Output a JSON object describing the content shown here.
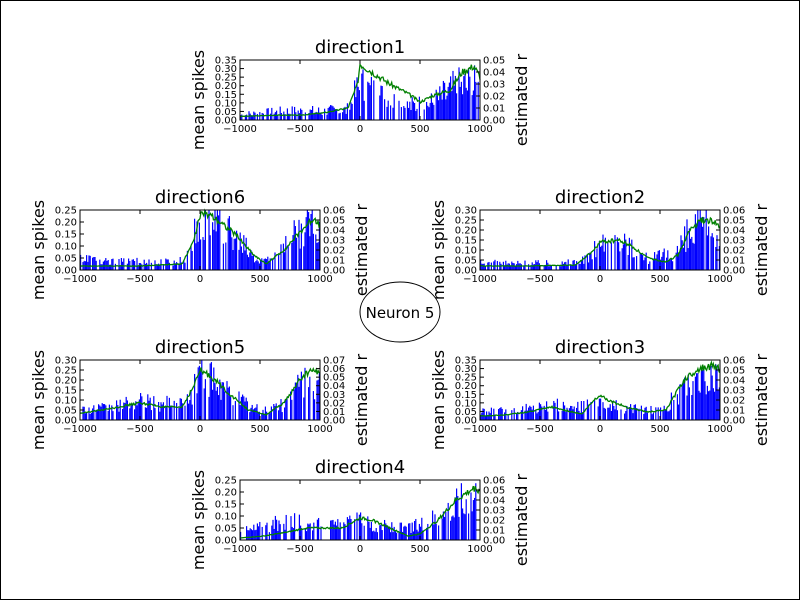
{
  "figure": {
    "center_label": "Neuron 5",
    "bar_color": "#0000ff",
    "line_color": "#008000"
  },
  "chart_data": [
    {
      "type": "bar",
      "title": "direction1",
      "xlabel": "",
      "ylabel": "mean spikes",
      "ylabel_right": "estimated r",
      "xlim": [
        -1000,
        1000
      ],
      "ylim": [
        0,
        0.35
      ],
      "ylim_right": [
        0,
        0.05
      ],
      "xticks": [
        -1000,
        -500,
        0,
        500,
        1000
      ],
      "yticks": [
        "0.00",
        "0.05",
        "0.10",
        "0.15",
        "0.20",
        "0.25",
        "0.30",
        "0.35"
      ],
      "yticks_right": [
        "0.00",
        "0.01",
        "0.02",
        "0.03",
        "0.04",
        "0.05"
      ],
      "profile": {
        "bars": [
          [
            -1000,
            0.03
          ],
          [
            -800,
            0.04
          ],
          [
            -600,
            0.05
          ],
          [
            -300,
            0.05
          ],
          [
            -100,
            0.06
          ],
          [
            0,
            0.2
          ],
          [
            200,
            0.13
          ],
          [
            400,
            0.08
          ],
          [
            600,
            0.1
          ],
          [
            800,
            0.18
          ],
          [
            900,
            0.2
          ],
          [
            1000,
            0.18
          ]
        ],
        "line": [
          [
            -1000,
            0.003
          ],
          [
            -700,
            0.004
          ],
          [
            -500,
            0.004
          ],
          [
            -300,
            0.006
          ],
          [
            -100,
            0.01
          ],
          [
            -20,
            0.03
          ],
          [
            0,
            0.047
          ],
          [
            100,
            0.04
          ],
          [
            250,
            0.03
          ],
          [
            400,
            0.022
          ],
          [
            500,
            0.015
          ],
          [
            600,
            0.02
          ],
          [
            750,
            0.025
          ],
          [
            850,
            0.04
          ],
          [
            950,
            0.045
          ],
          [
            1000,
            0.036
          ]
        ]
      }
    },
    {
      "type": "bar",
      "title": "direction6",
      "xlabel": "",
      "ylabel": "mean spikes",
      "ylabel_right": "estimated r",
      "xlim": [
        -1000,
        1000
      ],
      "ylim": [
        0,
        0.25
      ],
      "ylim_right": [
        0,
        0.06
      ],
      "xticks": [
        -1000,
        -500,
        0,
        500,
        1000
      ],
      "yticks": [
        "0.00",
        "0.05",
        "0.10",
        "0.15",
        "0.20",
        "0.25"
      ],
      "yticks_right": [
        "0.00",
        "0.01",
        "0.02",
        "0.03",
        "0.04",
        "0.05",
        "0.06"
      ],
      "profile": {
        "bars": [
          [
            -1000,
            0.05
          ],
          [
            -800,
            0.03
          ],
          [
            -500,
            0.03
          ],
          [
            -200,
            0.03
          ],
          [
            -100,
            0.05
          ],
          [
            0,
            0.2
          ],
          [
            150,
            0.16
          ],
          [
            300,
            0.12
          ],
          [
            500,
            0.03
          ],
          [
            650,
            0.07
          ],
          [
            800,
            0.13
          ],
          [
            900,
            0.18
          ],
          [
            1000,
            0.15
          ]
        ],
        "line": [
          [
            -1000,
            0.004
          ],
          [
            -500,
            0.004
          ],
          [
            -150,
            0.006
          ],
          [
            -50,
            0.03
          ],
          [
            0,
            0.055
          ],
          [
            80,
            0.056
          ],
          [
            150,
            0.05
          ],
          [
            300,
            0.035
          ],
          [
            450,
            0.015
          ],
          [
            550,
            0.006
          ],
          [
            700,
            0.02
          ],
          [
            850,
            0.04
          ],
          [
            950,
            0.052
          ],
          [
            1000,
            0.045
          ]
        ]
      }
    },
    {
      "type": "bar",
      "title": "direction2",
      "xlabel": "",
      "ylabel": "mean spikes",
      "ylabel_right": "estimated r",
      "xlim": [
        -1000,
        1000
      ],
      "ylim": [
        0,
        0.3
      ],
      "ylim_right": [
        0,
        0.06
      ],
      "xticks": [
        -1000,
        -500,
        0,
        500,
        1000
      ],
      "yticks": [
        "0.00",
        "0.05",
        "0.10",
        "0.15",
        "0.20",
        "0.25",
        "0.30"
      ],
      "yticks_right": [
        "0.00",
        "0.01",
        "0.02",
        "0.03",
        "0.04",
        "0.05",
        "0.06"
      ],
      "profile": {
        "bars": [
          [
            -1000,
            0.03
          ],
          [
            -700,
            0.03
          ],
          [
            -300,
            0.03
          ],
          [
            -100,
            0.05
          ],
          [
            0,
            0.13
          ],
          [
            200,
            0.12
          ],
          [
            400,
            0.05
          ],
          [
            600,
            0.07
          ],
          [
            800,
            0.2
          ],
          [
            1000,
            0.17
          ]
        ],
        "line": [
          [
            -1000,
            0.004
          ],
          [
            -600,
            0.004
          ],
          [
            -200,
            0.005
          ],
          [
            -50,
            0.02
          ],
          [
            0,
            0.028
          ],
          [
            150,
            0.03
          ],
          [
            250,
            0.025
          ],
          [
            400,
            0.012
          ],
          [
            550,
            0.008
          ],
          [
            650,
            0.015
          ],
          [
            750,
            0.04
          ],
          [
            850,
            0.05
          ],
          [
            950,
            0.048
          ],
          [
            1000,
            0.042
          ]
        ]
      }
    },
    {
      "type": "bar",
      "title": "direction5",
      "xlabel": "",
      "ylabel": "mean spikes",
      "ylabel_right": "estimated r",
      "xlim": [
        -1000,
        1000
      ],
      "ylim": [
        0,
        0.3
      ],
      "ylim_right": [
        0,
        0.07
      ],
      "xticks": [
        -1000,
        -500,
        0,
        500,
        1000
      ],
      "yticks": [
        "0.00",
        "0.05",
        "0.10",
        "0.15",
        "0.20",
        "0.25",
        "0.30"
      ],
      "yticks_right": [
        "0.00",
        "0.01",
        "0.02",
        "0.03",
        "0.04",
        "0.05",
        "0.06",
        "0.07"
      ],
      "profile": {
        "bars": [
          [
            -1000,
            0.05
          ],
          [
            -800,
            0.05
          ],
          [
            -500,
            0.08
          ],
          [
            -300,
            0.07
          ],
          [
            -100,
            0.08
          ],
          [
            0,
            0.22
          ],
          [
            150,
            0.15
          ],
          [
            300,
            0.1
          ],
          [
            500,
            0.04
          ],
          [
            700,
            0.07
          ],
          [
            850,
            0.17
          ],
          [
            1000,
            0.15
          ]
        ],
        "line": [
          [
            -1000,
            0.008
          ],
          [
            -800,
            0.012
          ],
          [
            -500,
            0.02
          ],
          [
            -300,
            0.015
          ],
          [
            -150,
            0.015
          ],
          [
            -50,
            0.04
          ],
          [
            0,
            0.058
          ],
          [
            100,
            0.05
          ],
          [
            250,
            0.03
          ],
          [
            400,
            0.012
          ],
          [
            550,
            0.006
          ],
          [
            700,
            0.02
          ],
          [
            850,
            0.05
          ],
          [
            950,
            0.06
          ],
          [
            1000,
            0.052
          ]
        ]
      }
    },
    {
      "type": "bar",
      "title": "direction3",
      "xlabel": "",
      "ylabel": "mean spikes",
      "ylabel_right": "estimated r",
      "xlim": [
        -1000,
        1000
      ],
      "ylim": [
        0,
        0.35
      ],
      "ylim_right": [
        0,
        0.06
      ],
      "xticks": [
        -1000,
        -500,
        0,
        500,
        1000
      ],
      "yticks": [
        "0.00",
        "0.05",
        "0.10",
        "0.15",
        "0.20",
        "0.25",
        "0.30",
        "0.35"
      ],
      "yticks_right": [
        "0.00",
        "0.01",
        "0.02",
        "0.03",
        "0.04",
        "0.05",
        "0.06"
      ],
      "profile": {
        "bars": [
          [
            -1000,
            0.04
          ],
          [
            -700,
            0.05
          ],
          [
            -400,
            0.08
          ],
          [
            -200,
            0.06
          ],
          [
            0,
            0.09
          ],
          [
            200,
            0.06
          ],
          [
            500,
            0.05
          ],
          [
            700,
            0.15
          ],
          [
            850,
            0.2
          ],
          [
            1000,
            0.2
          ]
        ],
        "line": [
          [
            -1000,
            0.004
          ],
          [
            -800,
            0.005
          ],
          [
            -600,
            0.008
          ],
          [
            -400,
            0.013
          ],
          [
            -300,
            0.01
          ],
          [
            -150,
            0.006
          ],
          [
            -50,
            0.02
          ],
          [
            0,
            0.025
          ],
          [
            100,
            0.018
          ],
          [
            250,
            0.012
          ],
          [
            400,
            0.008
          ],
          [
            550,
            0.01
          ],
          [
            700,
            0.04
          ],
          [
            800,
            0.05
          ],
          [
            950,
            0.055
          ],
          [
            1000,
            0.05
          ]
        ]
      }
    },
    {
      "type": "bar",
      "title": "direction4",
      "xlabel": "",
      "ylabel": "mean spikes",
      "ylabel_right": "estimated r",
      "xlim": [
        -1000,
        1000
      ],
      "ylim": [
        0,
        0.25
      ],
      "ylim_right": [
        0,
        0.06
      ],
      "xticks": [
        -1000,
        -500,
        0,
        500,
        1000
      ],
      "yticks": [
        "0.00",
        "0.05",
        "0.10",
        "0.15",
        "0.20",
        "0.25"
      ],
      "yticks_right": [
        "0.00",
        "0.01",
        "0.02",
        "0.03",
        "0.04",
        "0.05",
        "0.06"
      ],
      "profile": {
        "bars": [
          [
            -1000,
            0.03
          ],
          [
            -800,
            0.05
          ],
          [
            -600,
            0.07
          ],
          [
            -400,
            0.06
          ],
          [
            -200,
            0.05
          ],
          [
            0,
            0.07
          ],
          [
            200,
            0.05
          ],
          [
            400,
            0.04
          ],
          [
            600,
            0.08
          ],
          [
            800,
            0.13
          ],
          [
            950,
            0.18
          ],
          [
            1000,
            0.16
          ]
        ],
        "line": [
          [
            -1000,
            0.002
          ],
          [
            -800,
            0.004
          ],
          [
            -600,
            0.008
          ],
          [
            -450,
            0.012
          ],
          [
            -300,
            0.012
          ],
          [
            -150,
            0.012
          ],
          [
            0,
            0.022
          ],
          [
            100,
            0.02
          ],
          [
            250,
            0.012
          ],
          [
            400,
            0.004
          ],
          [
            500,
            0.006
          ],
          [
            650,
            0.02
          ],
          [
            800,
            0.04
          ],
          [
            950,
            0.052
          ],
          [
            1000,
            0.05
          ]
        ]
      }
    }
  ]
}
